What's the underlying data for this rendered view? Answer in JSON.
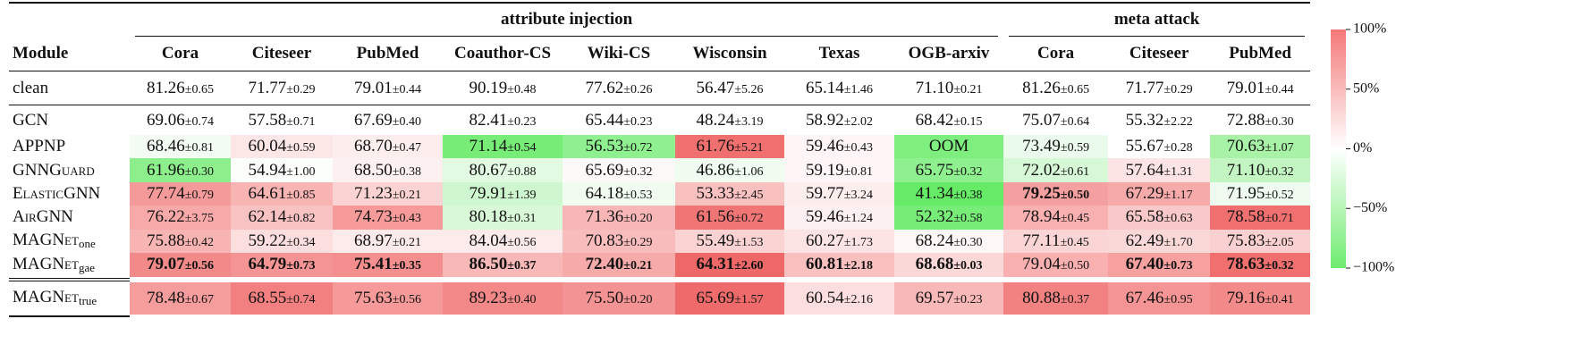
{
  "header": {
    "group1": "attribute injection",
    "group2": "meta attack",
    "module": "Module",
    "datasets": [
      "Cora",
      "Citeseer",
      "PubMed",
      "Coauthor-CS",
      "Wiki-CS",
      "Wisconsin",
      "Texas",
      "OGB-arxiv",
      "Cora",
      "Citeseer",
      "PubMed"
    ]
  },
  "rows": [
    {
      "module": "clean",
      "cells": [
        {
          "mean": "81.26",
          "std": "±0.65"
        },
        {
          "mean": "71.77",
          "std": "±0.29"
        },
        {
          "mean": "79.01",
          "std": "±0.44"
        },
        {
          "mean": "90.19",
          "std": "±0.48"
        },
        {
          "mean": "77.62",
          "std": "±0.26"
        },
        {
          "mean": "56.47",
          "std": "±5.26"
        },
        {
          "mean": "65.14",
          "std": "±1.46"
        },
        {
          "mean": "71.10",
          "std": "±0.21"
        },
        {
          "mean": "81.26",
          "std": "±0.65"
        },
        {
          "mean": "71.77",
          "std": "±0.29"
        },
        {
          "mean": "79.01",
          "std": "±0.44"
        }
      ]
    },
    {
      "module": "GCN",
      "cells": [
        {
          "mean": "69.06",
          "std": "±0.74"
        },
        {
          "mean": "57.58",
          "std": "±0.71"
        },
        {
          "mean": "67.69",
          "std": "±0.40"
        },
        {
          "mean": "82.41",
          "std": "±0.23"
        },
        {
          "mean": "65.44",
          "std": "±0.23"
        },
        {
          "mean": "48.24",
          "std": "±3.19"
        },
        {
          "mean": "58.92",
          "std": "±2.02"
        },
        {
          "mean": "68.42",
          "std": "±0.15"
        },
        {
          "mean": "75.07",
          "std": "±0.64"
        },
        {
          "mean": "55.32",
          "std": "±2.22"
        },
        {
          "mean": "72.88",
          "std": "±0.30"
        }
      ]
    },
    {
      "module": "APPNP",
      "cells": [
        {
          "mean": "68.46",
          "std": "±0.81"
        },
        {
          "mean": "60.04",
          "std": "±0.59"
        },
        {
          "mean": "68.70",
          "std": "±0.47"
        },
        {
          "mean": "71.14",
          "std": "±0.54"
        },
        {
          "mean": "56.53",
          "std": "±0.72"
        },
        {
          "mean": "61.76",
          "std": "±5.21"
        },
        {
          "mean": "59.46",
          "std": "±0.43"
        },
        {
          "text": "OOM"
        },
        {
          "mean": "73.49",
          "std": "±0.59"
        },
        {
          "mean": "55.67",
          "std": "±0.28"
        },
        {
          "mean": "70.63",
          "std": "±1.07"
        }
      ],
      "colors": [
        "#f3fcf3",
        "#fde6e6",
        "#fdeeee",
        "#77ed77",
        "#8ff08f",
        "#f07070",
        "#fef5f5",
        "#7eee7e",
        "#ebfbeb",
        "#ffffff",
        "#a8f2a8"
      ]
    },
    {
      "module": "GNNGuard",
      "smallcaps": true,
      "cells": [
        {
          "mean": "61.96",
          "std": "±0.30"
        },
        {
          "mean": "54.94",
          "std": "±1.00"
        },
        {
          "mean": "68.50",
          "std": "±0.38"
        },
        {
          "mean": "80.67",
          "std": "±0.88"
        },
        {
          "mean": "65.69",
          "std": "±0.32"
        },
        {
          "mean": "46.86",
          "std": "±1.06"
        },
        {
          "mean": "59.19",
          "std": "±0.81"
        },
        {
          "mean": "65.75",
          "std": "±0.32"
        },
        {
          "mean": "72.02",
          "std": "±0.61"
        },
        {
          "mean": "57.64",
          "std": "±1.31"
        },
        {
          "mean": "71.10",
          "std": "±0.32"
        }
      ],
      "colors": [
        "#8cef8c",
        "#fcfefc",
        "#fdf0f0",
        "#e2fae2",
        "#fdf9f9",
        "#f0fcf0",
        "#fef6f6",
        "#8ff08f",
        "#d6f8d6",
        "#fde4e4",
        "#c3f5c3"
      ]
    },
    {
      "module": "ElasticGNN",
      "smallcaps": true,
      "cells": [
        {
          "mean": "77.74",
          "std": "±0.79"
        },
        {
          "mean": "64.61",
          "std": "±0.85"
        },
        {
          "mean": "71.23",
          "std": "±0.21"
        },
        {
          "mean": "79.91",
          "std": "±1.39"
        },
        {
          "mean": "64.18",
          "std": "±0.53"
        },
        {
          "mean": "53.33",
          "std": "±2.45"
        },
        {
          "mean": "59.77",
          "std": "±3.24"
        },
        {
          "mean": "41.34",
          "std": "±0.38"
        },
        {
          "mean": "79.25",
          "std": "±0.50",
          "bold": true
        },
        {
          "mean": "67.29",
          "std": "±1.17"
        },
        {
          "mean": "71.95",
          "std": "±0.52"
        }
      ],
      "colors": [
        "#f59a9a",
        "#f8b3b3",
        "#fbd3d3",
        "#cff7cf",
        "#f1fcf1",
        "#f9c0c0",
        "#fdeeee",
        "#66eb66",
        "#f5a0a0",
        "#f7aaaa",
        "#eefbee"
      ]
    },
    {
      "module": "AirGNN",
      "smallcaps": true,
      "cells": [
        {
          "mean": "76.22",
          "std": "±3.75"
        },
        {
          "mean": "62.14",
          "std": "±0.82"
        },
        {
          "mean": "74.73",
          "std": "±0.43"
        },
        {
          "mean": "80.18",
          "std": "±0.31"
        },
        {
          "mean": "71.36",
          "std": "±0.20"
        },
        {
          "mean": "61.56",
          "std": "±0.72"
        },
        {
          "mean": "59.46",
          "std": "±1.24"
        },
        {
          "mean": "52.32",
          "std": "±0.58"
        },
        {
          "mean": "78.94",
          "std": "±0.45"
        },
        {
          "mean": "65.58",
          "std": "±0.63"
        },
        {
          "mean": "78.58",
          "std": "±0.71"
        }
      ],
      "colors": [
        "#f7a8a8",
        "#f9c2c2",
        "#f69a9a",
        "#d8f8d8",
        "#f8b6b6",
        "#f07676",
        "#fdf0f0",
        "#77ed77",
        "#f8b0b0",
        "#f9c8c8",
        "#f07070"
      ]
    },
    {
      "module": "MAGNet",
      "sub": "one",
      "smallcaps": true,
      "cells": [
        {
          "mean": "75.88",
          "std": "±0.42"
        },
        {
          "mean": "59.22",
          "std": "±0.34"
        },
        {
          "mean": "68.97",
          "std": "±0.21"
        },
        {
          "mean": "84.04",
          "std": "±0.56"
        },
        {
          "mean": "70.83",
          "std": "±0.29"
        },
        {
          "mean": "55.49",
          "std": "±1.53"
        },
        {
          "mean": "60.27",
          "std": "±1.73"
        },
        {
          "mean": "68.24",
          "std": "±0.30"
        },
        {
          "mean": "77.11",
          "std": "±0.45"
        },
        {
          "mean": "62.49",
          "std": "±1.70"
        },
        {
          "mean": "75.83",
          "std": "±2.05"
        }
      ],
      "colors": [
        "#f8b3b3",
        "#fcdede",
        "#fdeaea",
        "#fdeaea",
        "#f8bcbc",
        "#fbd3d3",
        "#fde4e4",
        "#fef7f7",
        "#fbd5d5",
        "#fbd8d8",
        "#fad0d0"
      ]
    },
    {
      "module": "MAGNet",
      "sub": "gae",
      "smallcaps": true,
      "cells": [
        {
          "mean": "79.07",
          "std": "±0.56",
          "bold": true
        },
        {
          "mean": "64.79",
          "std": "±0.73",
          "bold": true
        },
        {
          "mean": "75.41",
          "std": "±0.35",
          "bold": true
        },
        {
          "mean": "86.50",
          "std": "±0.37",
          "bold": true
        },
        {
          "mean": "72.40",
          "std": "±0.21",
          "bold": true
        },
        {
          "mean": "64.31",
          "std": "±2.60",
          "bold": true
        },
        {
          "mean": "60.81",
          "std": "±2.18",
          "bold": true
        },
        {
          "mean": "68.68",
          "std": "±0.03",
          "bold": true
        },
        {
          "mean": "79.04",
          "std": "±0.50"
        },
        {
          "mean": "67.40",
          "std": "±0.73",
          "bold": true
        },
        {
          "mean": "78.63",
          "std": "±0.32",
          "bold": true
        }
      ],
      "colors": [
        "#f38a8a",
        "#f49494",
        "#f58f8f",
        "#f8b8b8",
        "#f7aaaa",
        "#ef6868",
        "#f9c0c0",
        "#fbd8d8",
        "#f8b0b0",
        "#f6a0a0",
        "#f07070"
      ]
    },
    {
      "module": "MAGNet",
      "sub": "true",
      "smallcaps": true,
      "cells": [
        {
          "mean": "78.48",
          "std": "±0.67"
        },
        {
          "mean": "68.55",
          "std": "±0.74"
        },
        {
          "mean": "75.63",
          "std": "±0.56"
        },
        {
          "mean": "89.23",
          "std": "±0.40"
        },
        {
          "mean": "75.50",
          "std": "±0.20"
        },
        {
          "mean": "65.69",
          "std": "±1.57"
        },
        {
          "mean": "60.54",
          "std": "±2.16"
        },
        {
          "mean": "69.57",
          "std": "±0.23"
        },
        {
          "mean": "80.88",
          "std": "±0.37"
        },
        {
          "mean": "67.46",
          "std": "±0.95"
        },
        {
          "mean": "79.16",
          "std": "±0.41"
        }
      ],
      "colors": [
        "#f59d9d",
        "#f28080",
        "#f59999",
        "#f38888",
        "#f49393",
        "#ef6b6b",
        "#fcdede",
        "#f8b8b8",
        "#f28282",
        "#f49494",
        "#f38a8a"
      ]
    }
  ],
  "colorbar": {
    "colors": [
      "#f47878",
      "#ffffff",
      "#6eec6e"
    ],
    "ticks": [
      "100%",
      "50%",
      "0%",
      "−50%",
      "−100%"
    ]
  }
}
